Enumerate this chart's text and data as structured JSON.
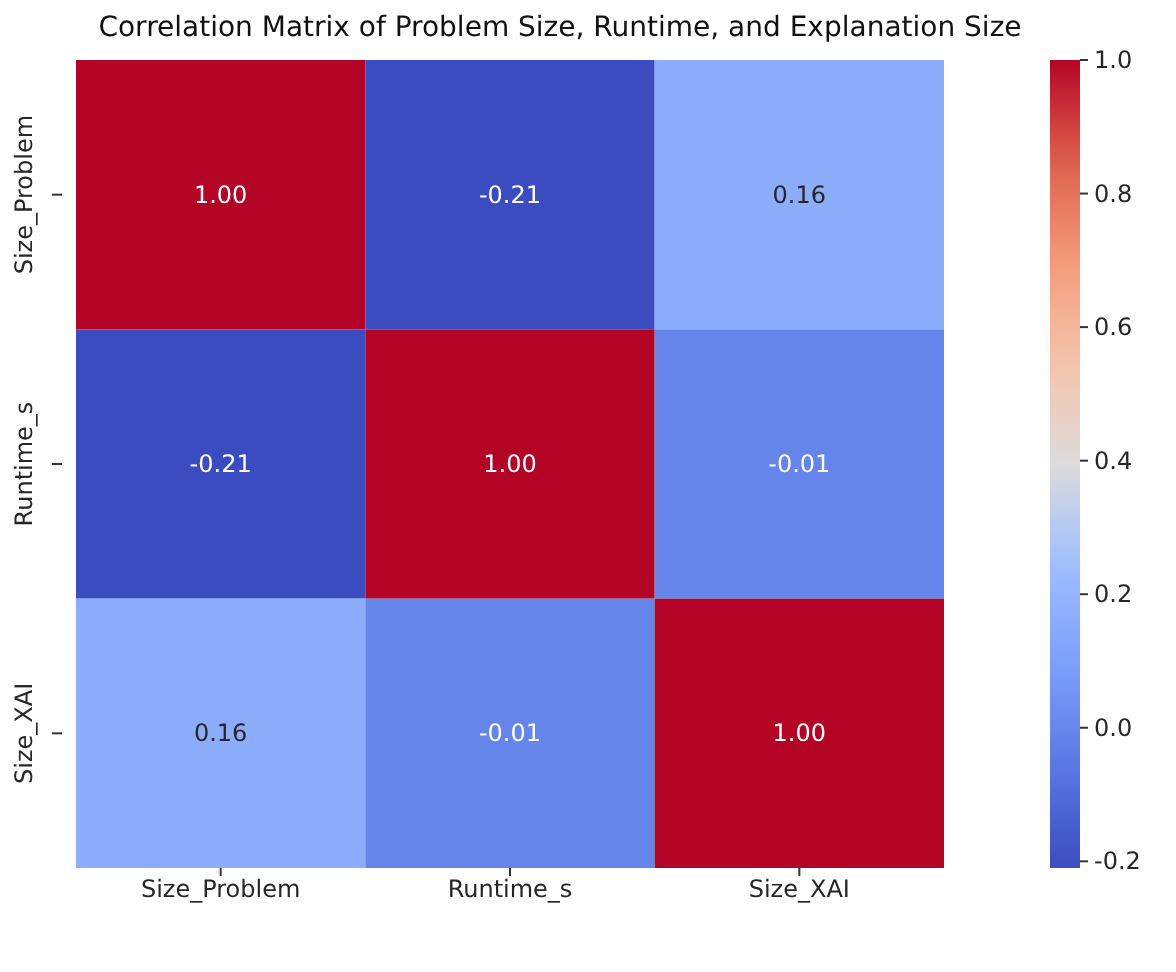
{
  "chart_data": {
    "type": "heatmap",
    "title": "Correlation Matrix of Problem Size, Runtime, and Explanation Size",
    "categories": [
      "Size_Problem",
      "Runtime_s",
      "Size_XAI"
    ],
    "y_categories": [
      "Size_Problem",
      "Runtime_s",
      "Size_XAI"
    ],
    "cells": [
      [
        1.0,
        -0.21,
        0.16
      ],
      [
        -0.21,
        1.0,
        -0.01
      ],
      [
        0.16,
        -0.01,
        1.0
      ]
    ],
    "cell_labels": [
      [
        "1.00",
        "-0.21",
        "0.16"
      ],
      [
        "-0.21",
        "1.00",
        "-0.01"
      ],
      [
        "0.16",
        "-0.01",
        "1.00"
      ]
    ],
    "clim": [
      -0.21,
      1.0
    ],
    "cticks": [
      -0.2,
      {
        "value": 0,
        "label": "0.0"
      },
      0.2,
      0.4,
      0.6,
      0.8,
      {
        "value": 1,
        "label": "1.0"
      }
    ]
  }
}
